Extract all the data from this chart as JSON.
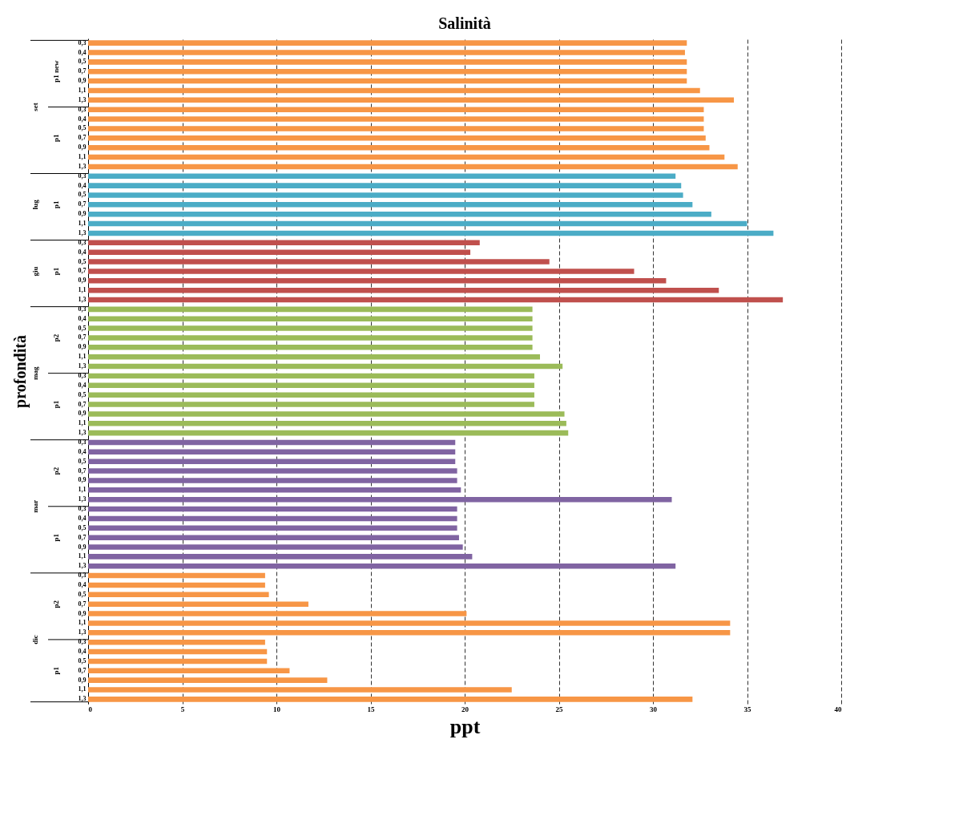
{
  "chart_data": {
    "type": "bar",
    "orientation": "horizontal",
    "title": "Salinità",
    "xlabel": "ppt",
    "ylabel": "profondità",
    "categories": [
      "0,3",
      "0,4",
      "0,5",
      "0,7",
      "0,9",
      "1,1",
      "1,3",
      "0,3",
      "0,4",
      "0,5",
      "0,7",
      "0,9",
      "1,1",
      "1,3",
      "0,3",
      "0,4",
      "0,5",
      "0,7",
      "0,9",
      "1,1",
      "1,3",
      "0,3",
      "0,4",
      "0,5",
      "0,7",
      "0,9",
      "1,1",
      "1,3",
      "0,3",
      "0,4",
      "0,5",
      "0,7",
      "0,9",
      "1,1",
      "1,3",
      "0,3",
      "0,4",
      "0,5",
      "0,7",
      "0,9",
      "1,1",
      "1,3",
      "0,3",
      "0,4",
      "0,5",
      "0,7",
      "0,9",
      "1,1",
      "1,3",
      "0,3",
      "0,4",
      "0,5",
      "0,7",
      "0,9",
      "1,1",
      "1,3",
      "0,3",
      "0,4",
      "0,5",
      "0,7",
      "0,9",
      "1,1",
      "1,3",
      "0,3",
      "0,4",
      "0,5",
      "0,7",
      "0,9",
      "1,1",
      "1,3"
    ],
    "series": [
      {
        "color": "#f79646",
        "values": [
          31.8,
          31.7,
          31.8,
          31.8,
          31.8,
          32.5,
          34.3,
          null,
          null,
          null,
          null,
          null,
          null,
          null,
          null,
          null,
          null,
          null,
          null,
          null,
          null,
          null,
          null,
          null,
          null,
          null,
          null,
          null,
          null,
          null,
          null,
          null,
          null,
          null,
          null,
          null,
          null,
          null,
          null,
          null,
          null,
          null,
          null,
          null,
          null,
          null,
          null,
          null,
          null,
          null,
          null,
          null,
          null,
          null,
          null,
          null,
          null,
          null,
          null,
          null,
          null,
          null,
          null,
          null,
          null,
          null,
          null,
          null,
          null,
          null
        ]
      },
      {
        "color": "#f79646",
        "values": [
          null,
          null,
          null,
          null,
          null,
          null,
          null,
          32.7,
          32.7,
          32.7,
          32.8,
          33.0,
          33.8,
          34.5,
          null,
          null,
          null,
          null,
          null,
          null,
          null,
          null,
          null,
          null,
          null,
          null,
          null,
          null,
          null,
          null,
          null,
          null,
          null,
          null,
          null,
          null,
          null,
          null,
          null,
          null,
          null,
          null,
          null,
          null,
          null,
          null,
          null,
          null,
          null,
          null,
          null,
          null,
          null,
          null,
          null,
          null,
          null,
          null,
          null,
          null,
          null,
          null,
          null,
          null,
          null,
          null,
          null,
          null,
          null,
          null
        ]
      },
      {
        "color": "#4bacc6",
        "values": [
          null,
          null,
          null,
          null,
          null,
          null,
          null,
          null,
          null,
          null,
          null,
          null,
          null,
          null,
          31.2,
          31.5,
          31.6,
          32.1,
          33.1,
          35.0,
          36.4,
          null,
          null,
          null,
          null,
          null,
          null,
          null,
          null,
          null,
          null,
          null,
          null,
          null,
          null,
          null,
          null,
          null,
          null,
          null,
          null,
          null,
          null,
          null,
          null,
          null,
          null,
          null,
          null,
          null,
          null,
          null,
          null,
          null,
          null,
          null,
          null,
          null,
          null,
          null,
          null,
          null,
          null,
          null,
          null,
          null,
          null,
          null,
          null,
          null
        ]
      },
      {
        "color": "#c0504d",
        "values": [
          null,
          null,
          null,
          null,
          null,
          null,
          null,
          null,
          null,
          null,
          null,
          null,
          null,
          null,
          null,
          null,
          null,
          null,
          null,
          null,
          null,
          20.8,
          20.3,
          24.5,
          29.0,
          30.7,
          33.5,
          36.9,
          null,
          null,
          null,
          null,
          null,
          null,
          null,
          null,
          null,
          null,
          null,
          null,
          null,
          null,
          null,
          null,
          null,
          null,
          null,
          null,
          null,
          null,
          null,
          null,
          null,
          null,
          null,
          null,
          null,
          null,
          null,
          null,
          null,
          null,
          null,
          null,
          null,
          null,
          null,
          null,
          null,
          null
        ]
      },
      {
        "color": "#9bbb59",
        "values": [
          null,
          null,
          null,
          null,
          null,
          null,
          null,
          null,
          null,
          null,
          null,
          null,
          null,
          null,
          null,
          null,
          null,
          null,
          null,
          null,
          null,
          null,
          null,
          null,
          null,
          null,
          null,
          null,
          23.6,
          23.6,
          23.6,
          23.6,
          23.6,
          24.0,
          25.2,
          null,
          null,
          null,
          null,
          null,
          null,
          null,
          null,
          null,
          null,
          null,
          null,
          null,
          null,
          null,
          null,
          null,
          null,
          null,
          null,
          null,
          null,
          null,
          null,
          null,
          null,
          null,
          null,
          null,
          null,
          null,
          null,
          null,
          null,
          null
        ]
      },
      {
        "color": "#9bbb59",
        "values": [
          null,
          null,
          null,
          null,
          null,
          null,
          null,
          null,
          null,
          null,
          null,
          null,
          null,
          null,
          null,
          null,
          null,
          null,
          null,
          null,
          null,
          null,
          null,
          null,
          null,
          null,
          null,
          null,
          null,
          null,
          null,
          null,
          null,
          null,
          null,
          23.7,
          23.7,
          23.7,
          23.7,
          25.3,
          25.4,
          25.5,
          null,
          null,
          null,
          null,
          null,
          null,
          null,
          null,
          null,
          null,
          null,
          null,
          null,
          null,
          null,
          null,
          null,
          null,
          null,
          null,
          null,
          null,
          null,
          null,
          null,
          null,
          null,
          null
        ]
      },
      {
        "color": "#8064a2",
        "values": [
          null,
          null,
          null,
          null,
          null,
          null,
          null,
          null,
          null,
          null,
          null,
          null,
          null,
          null,
          null,
          null,
          null,
          null,
          null,
          null,
          null,
          null,
          null,
          null,
          null,
          null,
          null,
          null,
          null,
          null,
          null,
          null,
          null,
          null,
          null,
          null,
          null,
          null,
          null,
          null,
          null,
          null,
          19.5,
          19.5,
          19.5,
          19.6,
          19.6,
          19.8,
          31.0,
          null,
          null,
          null,
          null,
          null,
          null,
          null,
          null,
          null,
          null,
          null,
          null,
          null,
          null,
          null,
          null,
          null,
          null,
          null,
          null,
          null
        ]
      },
      {
        "color": "#8064a2",
        "values": [
          null,
          null,
          null,
          null,
          null,
          null,
          null,
          null,
          null,
          null,
          null,
          null,
          null,
          null,
          null,
          null,
          null,
          null,
          null,
          null,
          null,
          null,
          null,
          null,
          null,
          null,
          null,
          null,
          null,
          null,
          null,
          null,
          null,
          null,
          null,
          null,
          null,
          null,
          null,
          null,
          null,
          null,
          null,
          null,
          null,
          null,
          null,
          null,
          null,
          19.6,
          19.6,
          19.6,
          19.7,
          19.9,
          20.4,
          31.2,
          null,
          null,
          null,
          null,
          null,
          null,
          null,
          null,
          null,
          null,
          null,
          null,
          null,
          null
        ]
      },
      {
        "color": "#f79646",
        "values": [
          null,
          null,
          null,
          null,
          null,
          null,
          null,
          null,
          null,
          null,
          null,
          null,
          null,
          null,
          null,
          null,
          null,
          null,
          null,
          null,
          null,
          null,
          null,
          null,
          null,
          null,
          null,
          null,
          null,
          null,
          null,
          null,
          null,
          null,
          null,
          null,
          null,
          null,
          null,
          null,
          null,
          null,
          null,
          null,
          null,
          null,
          null,
          null,
          null,
          null,
          null,
          null,
          null,
          null,
          null,
          null,
          9.4,
          9.4,
          9.6,
          11.7,
          20.1,
          34.1,
          34.1,
          null,
          null,
          null,
          null,
          null,
          null,
          null
        ]
      },
      {
        "color": "#f79646",
        "values": [
          null,
          null,
          null,
          null,
          null,
          null,
          null,
          null,
          null,
          null,
          null,
          null,
          null,
          null,
          null,
          null,
          null,
          null,
          null,
          null,
          null,
          null,
          null,
          null,
          null,
          null,
          null,
          null,
          null,
          null,
          null,
          null,
          null,
          null,
          null,
          null,
          null,
          null,
          null,
          null,
          null,
          null,
          null,
          null,
          null,
          null,
          null,
          null,
          null,
          null,
          null,
          null,
          null,
          null,
          null,
          null,
          null,
          null,
          null,
          null,
          null,
          null,
          null,
          9.4,
          9.5,
          9.5,
          10.7,
          12.7,
          22.5,
          32.1
        ]
      }
    ],
    "annotations": [
      "p1 new",
      "p1",
      "p1",
      "p1",
      "p2",
      "p1",
      "p2",
      "p1",
      "p2",
      "p1",
      "set",
      "lug",
      "giu",
      "mag",
      "mar",
      "dic"
    ],
    "xlim": [
      0,
      40
    ],
    "xticks": [
      0,
      5,
      10,
      15,
      20,
      25,
      30,
      35,
      40
    ],
    "grid": "x",
    "legend": false
  }
}
